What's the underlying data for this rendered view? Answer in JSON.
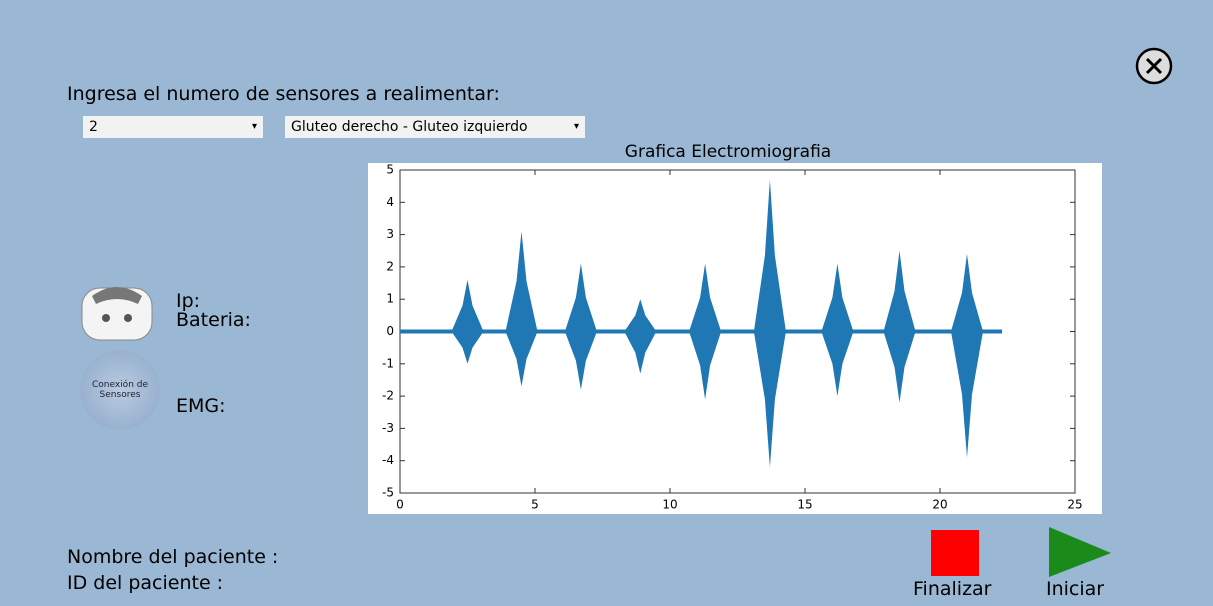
{
  "header": {
    "prompt": "Ingresa el numero de sensores a realimentar:"
  },
  "controls": {
    "sensor_count": "2",
    "muscles": "Gluteo derecho - Gluteo izquierdo"
  },
  "status": {
    "ip": "Ip:",
    "battery": "Bateria:",
    "connection": "Conexión de Sensores",
    "emg": "EMG:"
  },
  "patient": {
    "name": "Nombre del paciente :",
    "id": "ID del paciente :"
  },
  "buttons": {
    "stop": "Finalizar",
    "start": "Iniciar"
  },
  "chart_data": {
    "type": "burst",
    "title": "Grafica Electromiografia",
    "color": "#1f77b4",
    "x": [
      2.5,
      4.5,
      6.7,
      8.9,
      11.3,
      13.7,
      16.2,
      18.5,
      21.0
    ],
    "max_values": [
      1.6,
      3.1,
      2.1,
      1.0,
      2.1,
      4.7,
      2.1,
      2.5,
      2.4
    ],
    "min_values": [
      -1.0,
      -1.7,
      -1.8,
      -1.3,
      -2.1,
      -4.2,
      -2.0,
      -2.2,
      -3.9
    ],
    "signal_range": [
      0,
      22.3
    ],
    "xlim": [
      0,
      25
    ],
    "xticks": [
      0,
      5,
      10,
      15,
      20,
      25
    ],
    "ylim": [
      -5,
      5
    ],
    "yticks": [
      -5,
      -4,
      -3,
      -2,
      -1,
      0,
      1,
      2,
      3,
      4,
      5
    ],
    "grid": false
  }
}
